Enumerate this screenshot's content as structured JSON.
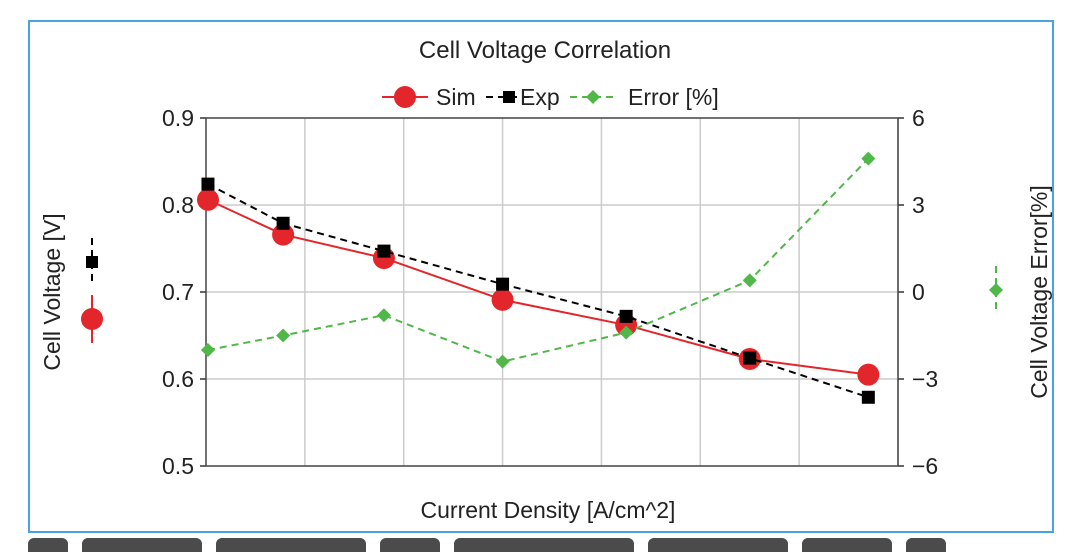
{
  "chart_data": {
    "type": "line",
    "title": "Cell Voltage Correlation",
    "xlabel": "Current Density [A/cm^2]",
    "ylabel": "Cell Voltage [V]",
    "y2label": "Cell Voltage Error[%]",
    "x_positions": [
      0,
      1,
      2,
      3,
      4,
      5,
      6,
      7
    ],
    "ylim": [
      0.5,
      0.9
    ],
    "y2lim": [
      -6,
      6
    ],
    "yticks": [
      "0.5",
      "0.6",
      "0.7",
      "0.8",
      "0.9"
    ],
    "y2ticks": [
      "−6",
      "−3",
      "0",
      "3",
      "6"
    ],
    "grid": true,
    "legend_position": "top-center",
    "series": [
      {
        "name": "Sim",
        "axis": "left",
        "marker": "circle",
        "line": "solid",
        "color": "#e3262b",
        "points": [
          [
            0.02,
            0.806
          ],
          [
            0.78,
            0.766
          ],
          [
            1.8,
            0.739
          ],
          [
            3.0,
            0.691
          ],
          [
            4.25,
            0.662
          ],
          [
            5.5,
            0.623
          ],
          [
            6.7,
            0.605
          ]
        ]
      },
      {
        "name": "Exp",
        "axis": "left",
        "marker": "square",
        "line": "dashed",
        "color": "#000000",
        "points": [
          [
            0.02,
            0.824
          ],
          [
            0.78,
            0.779
          ],
          [
            1.8,
            0.747
          ],
          [
            3.0,
            0.709
          ],
          [
            4.25,
            0.672
          ],
          [
            5.5,
            0.624
          ],
          [
            6.7,
            0.579
          ]
        ]
      },
      {
        "name": "Error [%]",
        "axis": "right",
        "marker": "diamond",
        "line": "dashed",
        "color": "#4fb848",
        "points": [
          [
            0.02,
            -2.0
          ],
          [
            0.78,
            -1.5
          ],
          [
            1.8,
            -0.8
          ],
          [
            3.0,
            -2.4
          ],
          [
            4.25,
            -1.4
          ],
          [
            5.5,
            0.4
          ],
          [
            6.7,
            4.6
          ]
        ]
      }
    ]
  }
}
